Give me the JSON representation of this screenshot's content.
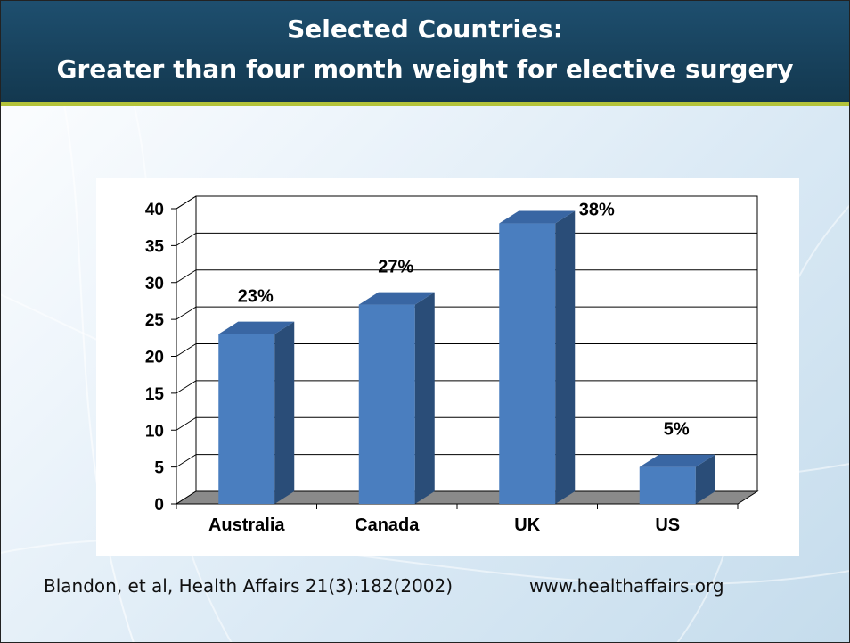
{
  "slide": {
    "title_line1": "Selected Countries:",
    "title_line2": "Greater than four month weight for elective surgery",
    "citation": "Blandon, et al, Health Affairs 21(3):182(2002)",
    "website": "www.healthaffairs.org"
  },
  "colors": {
    "header": "#173f59",
    "accent_line": "#b4c33a",
    "bar_front": "#4a7ebf",
    "bar_top": "#3966a3",
    "bar_side": "#2a4d78",
    "floor": "#8a8a8a"
  },
  "chart_data": {
    "type": "bar",
    "categories": [
      "Australia",
      "Canada",
      "UK",
      "US"
    ],
    "values": [
      23,
      27,
      38,
      5
    ],
    "data_labels": [
      "23%",
      "27%",
      "38%",
      "5%"
    ],
    "ylim": [
      0,
      40
    ],
    "yticks": [
      0,
      5,
      10,
      15,
      20,
      25,
      30,
      35,
      40
    ],
    "grid": true,
    "legend": "none",
    "style": "3d-column"
  }
}
